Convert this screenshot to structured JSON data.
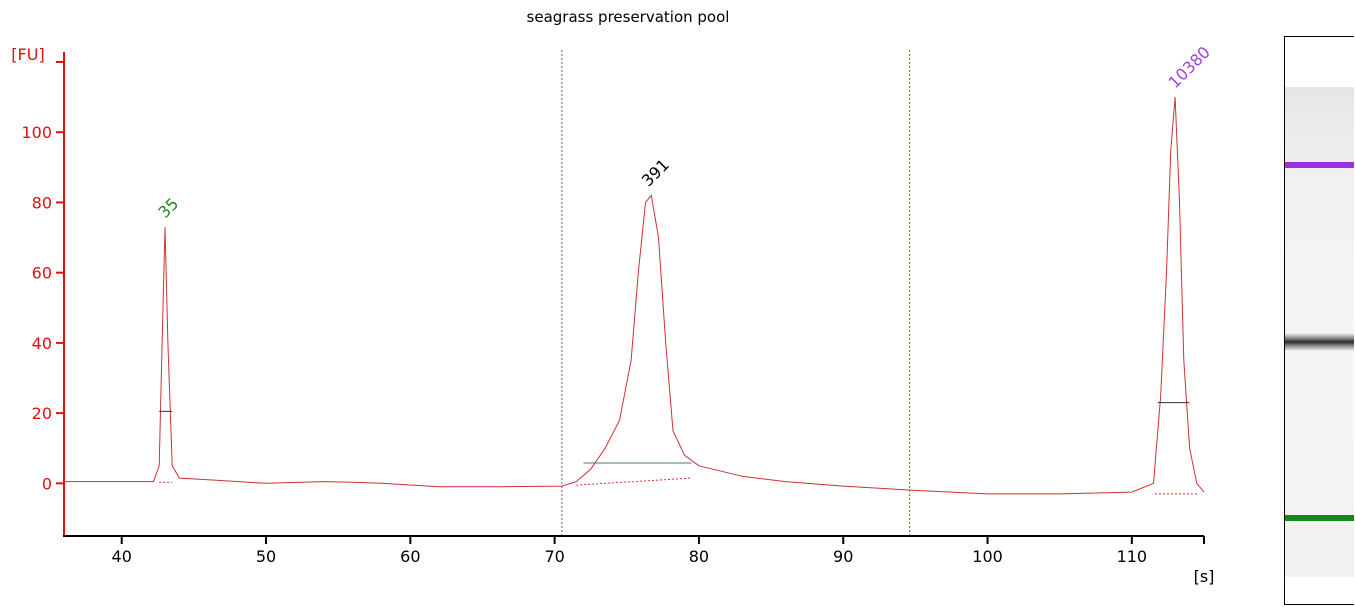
{
  "chart_data": {
    "type": "line",
    "title": "seagrass preservation pool",
    "ylabel": "[FU]",
    "xlabel": "[s]",
    "xlim": [
      36,
      115
    ],
    "ylim": [
      -15,
      120
    ],
    "x_ticks": [
      40,
      50,
      60,
      70,
      80,
      90,
      100,
      110
    ],
    "y_ticks": [
      0,
      20,
      40,
      60,
      80,
      100
    ],
    "grid": false,
    "colors": {
      "axis": "#e01010",
      "trace": "#cc3333",
      "divider": "#5555cc",
      "baseline": "#4a7a7a"
    },
    "series": [
      {
        "x": [
          36,
          42.2,
          42.6,
          42.8,
          43.0,
          43.2,
          43.5,
          44,
          46,
          50,
          54,
          56,
          58,
          62,
          66,
          70.5,
          71.5,
          72.5,
          73.5,
          74.5,
          75.3,
          75.8,
          76.3,
          76.7,
          77.2,
          77.7,
          78.2,
          79,
          80,
          81,
          83,
          86,
          90,
          95,
          100,
          105,
          110,
          111.5,
          112.0,
          112.4,
          112.7,
          113.0,
          113.3,
          113.6,
          114.0,
          114.5,
          115
        ],
        "y": [
          0.5,
          0.5,
          5,
          40,
          73,
          40,
          5,
          1.5,
          1,
          0,
          0.5,
          0.3,
          0,
          -1,
          -1,
          -0.8,
          0.5,
          4,
          10,
          18,
          35,
          60,
          80,
          82,
          70,
          40,
          15,
          8,
          5,
          4,
          2,
          0.5,
          -0.8,
          -2,
          -3,
          -3,
          -2.5,
          0,
          25,
          60,
          95,
          110,
          80,
          35,
          10,
          0,
          -2.5
        ]
      }
    ],
    "peaks": [
      {
        "x": 43.0,
        "y": 73,
        "label": "35",
        "color": "#1a8c1a"
      },
      {
        "x": 76.5,
        "y": 82,
        "label": "391",
        "color": "#000000"
      },
      {
        "x": 113.0,
        "y": 110,
        "label": "10380",
        "color": "#a040e0"
      }
    ],
    "dividers": [
      70.5,
      94.6
    ],
    "region_markers": [
      {
        "x1": 72.0,
        "x2": 79.5,
        "y": 5.8,
        "color": "#4a7a7a"
      },
      {
        "x1": 42.6,
        "x2": 43.5,
        "y": 20.5,
        "color": "#333333"
      },
      {
        "x1": 111.8,
        "x2": 114.0,
        "y": 23,
        "color": "#333333"
      }
    ],
    "baseline_segments": [
      {
        "x1": 42.6,
        "x2": 43.5,
        "y1": 0.3,
        "y2": 0.3
      },
      {
        "x1": 71.5,
        "x2": 79.5,
        "y1": -0.5,
        "y2": 1.5
      },
      {
        "x1": 111.6,
        "x2": 114.6,
        "y1": -3,
        "y2": -3
      }
    ],
    "gel": {
      "bands": [
        {
          "position": 0.16,
          "color": "#9b30e0",
          "strength": 1
        },
        {
          "position": 0.52,
          "color": "#333333",
          "strength": 0.9
        },
        {
          "position": 0.88,
          "color": "#108a10",
          "strength": 1
        }
      ]
    }
  }
}
